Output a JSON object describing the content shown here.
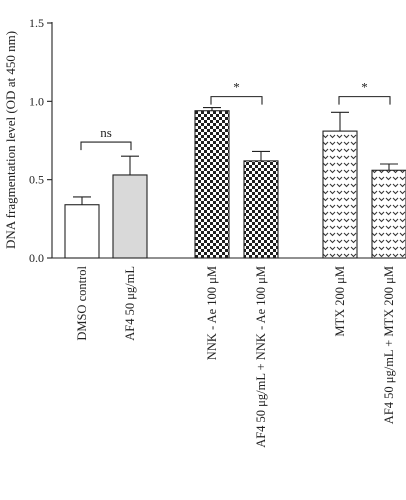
{
  "chart_data": {
    "type": "bar",
    "title": "",
    "xlabel": "",
    "ylabel": "DNA fragmentation level (OD at 450 nm)",
    "ylim": [
      0,
      1.5
    ],
    "yticks": [
      "0.0",
      "0.5",
      "1.0",
      "1.5"
    ],
    "grid": false,
    "categories": [
      "DMSO control",
      "AF4 50 μg/mL",
      "NNK - Ae 100 μM",
      "AF4 50 μg/mL + NNK - Ae 100 μM",
      "MTX 200 μM",
      "AF4 50 μg/mL + MTX 200 μM"
    ],
    "values": [
      0.34,
      0.53,
      0.94,
      0.62,
      0.81,
      0.56
    ],
    "errors": [
      0.05,
      0.12,
      0.02,
      0.06,
      0.12,
      0.04
    ],
    "fills": [
      "white",
      "light-gray",
      "dense-checker",
      "dense-checker",
      "sparse-chevron",
      "sparse-chevron"
    ],
    "significance": [
      {
        "from": 0,
        "to": 1,
        "label": "ns",
        "y": 0.74
      },
      {
        "from": 2,
        "to": 3,
        "label": "*",
        "y": 1.03
      },
      {
        "from": 4,
        "to": 5,
        "label": "*",
        "y": 1.03
      }
    ]
  },
  "colors": {
    "axis": "#222222",
    "light_fill": "#d9d9d9"
  }
}
